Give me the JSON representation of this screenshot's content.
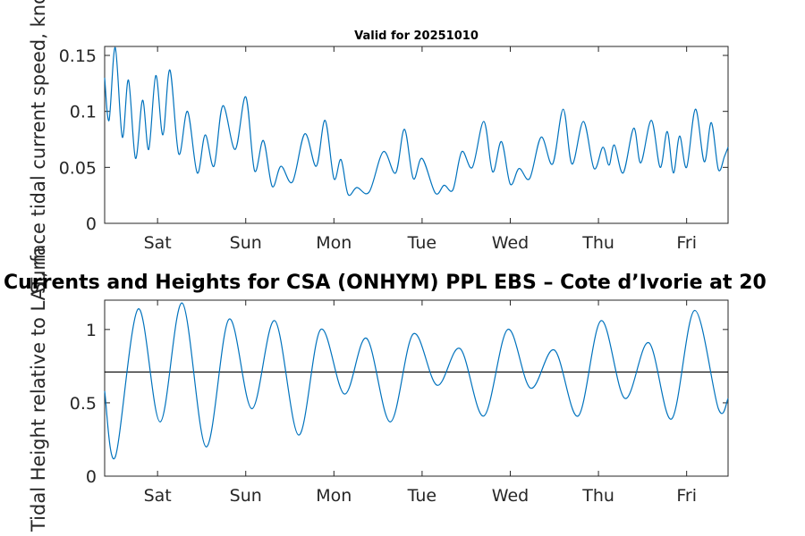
{
  "chart_data": [
    {
      "type": "line",
      "title": "Valid for 20251010",
      "ylabel": "Surface tidal current speed, knots",
      "xlabel": "",
      "categories": [
        "Sat",
        "Sun",
        "Mon",
        "Tue",
        "Wed",
        "Thu",
        "Fri"
      ],
      "x_range_days": [
        0,
        7.07
      ],
      "category_positions_days": [
        0.6,
        1.6,
        2.6,
        3.6,
        4.6,
        5.6,
        6.6
      ],
      "ylim": [
        0,
        0.158
      ],
      "yticks": [
        0,
        0.05,
        0.1,
        0.15
      ],
      "ytick_labels": [
        "0",
        "0.05",
        "0.1",
        "0.15"
      ],
      "series": [
        {
          "name": "current speed",
          "color": "#0072bd",
          "x": [
            0,
            0.05,
            0.12,
            0.2,
            0.27,
            0.35,
            0.43,
            0.5,
            0.58,
            0.66,
            0.74,
            0.84,
            0.94,
            1.05,
            1.14,
            1.24,
            1.34,
            1.48,
            1.6,
            1.7,
            1.8,
            1.9,
            2.0,
            2.13,
            2.27,
            2.4,
            2.5,
            2.6,
            2.68,
            2.76,
            2.86,
            3.0,
            3.16,
            3.3,
            3.4,
            3.5,
            3.6,
            3.75,
            3.85,
            3.95,
            4.05,
            4.17,
            4.3,
            4.4,
            4.5,
            4.6,
            4.7,
            4.82,
            4.95,
            5.08,
            5.2,
            5.3,
            5.43,
            5.55,
            5.65,
            5.72,
            5.78,
            5.88,
            6.0,
            6.08,
            6.2,
            6.3,
            6.38,
            6.45,
            6.52,
            6.6,
            6.7,
            6.8,
            6.88,
            6.96,
            7.03,
            7.07
          ],
          "values": [
            0.13,
            0.092,
            0.157,
            0.077,
            0.128,
            0.058,
            0.11,
            0.066,
            0.132,
            0.079,
            0.137,
            0.062,
            0.1,
            0.045,
            0.079,
            0.051,
            0.105,
            0.066,
            0.113,
            0.047,
            0.074,
            0.033,
            0.051,
            0.037,
            0.08,
            0.051,
            0.092,
            0.04,
            0.057,
            0.026,
            0.032,
            0.028,
            0.064,
            0.045,
            0.084,
            0.04,
            0.058,
            0.027,
            0.034,
            0.03,
            0.064,
            0.05,
            0.091,
            0.046,
            0.073,
            0.035,
            0.049,
            0.04,
            0.077,
            0.053,
            0.102,
            0.053,
            0.091,
            0.049,
            0.068,
            0.052,
            0.07,
            0.045,
            0.085,
            0.054,
            0.092,
            0.05,
            0.082,
            0.045,
            0.078,
            0.05,
            0.102,
            0.055,
            0.09,
            0.048,
            0.06,
            0.068
          ]
        }
      ]
    },
    {
      "type": "line",
      "title": "Currents and Heights for CSA (ONHYM) PPL EBS  – Cote d’Ivorie at 20",
      "ylabel": "Tidal Height relative to LAT, m",
      "xlabel": "",
      "categories": [
        "Sat",
        "Sun",
        "Mon",
        "Tue",
        "Wed",
        "Thu",
        "Fri"
      ],
      "x_range_days": [
        0,
        7.07
      ],
      "category_positions_days": [
        0.6,
        1.6,
        2.6,
        3.6,
        4.6,
        5.6,
        6.6
      ],
      "ylim": [
        0,
        1.2
      ],
      "yticks": [
        0,
        0.5,
        1
      ],
      "ytick_labels": [
        "0",
        "0.5",
        "1"
      ],
      "reference_line": 0.71,
      "reference_line_color": "#000000",
      "series": [
        {
          "name": "tidal height",
          "color": "#0072bd",
          "x": [
            0,
            0.12,
            0.38,
            0.63,
            0.88,
            1.15,
            1.41,
            1.67,
            1.93,
            2.2,
            2.45,
            2.72,
            2.97,
            3.24,
            3.5,
            3.77,
            4.03,
            4.3,
            4.57,
            4.83,
            5.1,
            5.37,
            5.63,
            5.9,
            6.17,
            6.43,
            6.69,
            6.96,
            7.07
          ],
          "values": [
            0.58,
            0.13,
            1.14,
            0.37,
            1.18,
            0.2,
            1.07,
            0.46,
            1.06,
            0.28,
            1.0,
            0.56,
            0.94,
            0.37,
            0.97,
            0.62,
            0.87,
            0.41,
            1.0,
            0.6,
            0.86,
            0.41,
            1.06,
            0.53,
            0.91,
            0.39,
            1.13,
            0.46,
            0.53
          ]
        }
      ]
    }
  ]
}
